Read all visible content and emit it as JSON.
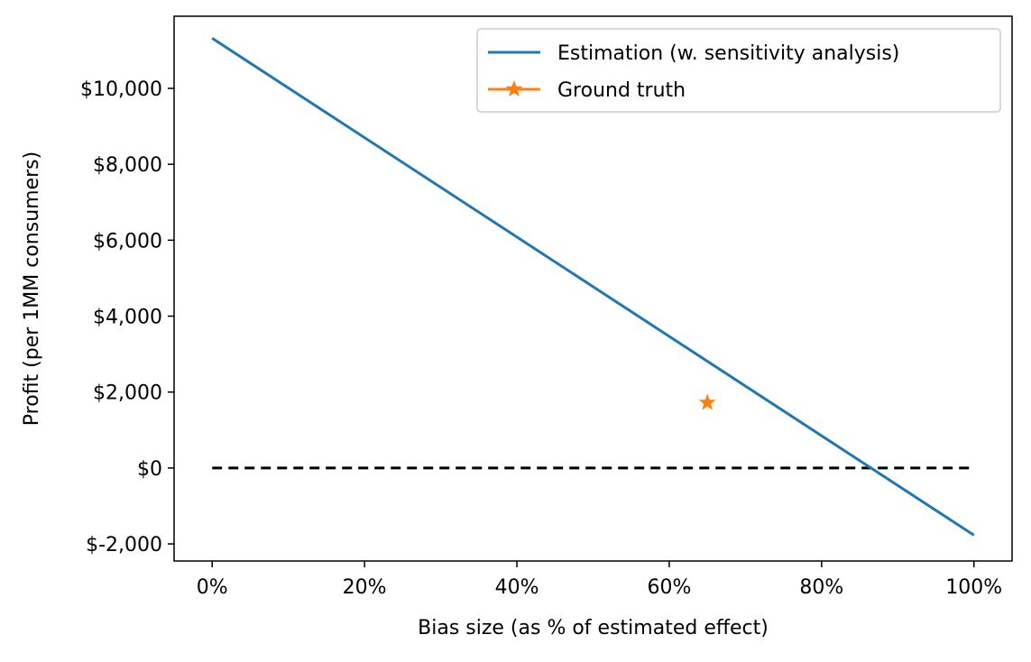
{
  "chart_data": {
    "type": "line",
    "title": "",
    "xlabel": "Bias size (as % of estimated effect)",
    "ylabel": "Profit (per 1MM consumers)",
    "xlim": [
      -0.05,
      1.05
    ],
    "ylim": [
      -2450,
      11900
    ],
    "x_ticks": [
      0,
      0.2,
      0.4,
      0.6,
      0.8,
      1.0
    ],
    "x_tick_labels": [
      "0%",
      "20%",
      "40%",
      "60%",
      "80%",
      "100%"
    ],
    "y_ticks": [
      -2000,
      0,
      2000,
      4000,
      6000,
      8000,
      10000
    ],
    "y_tick_labels": [
      "$-2,000",
      "$0",
      "$2,000",
      "$4,000",
      "$6,000",
      "$8,000",
      "$10,000"
    ],
    "grid": false,
    "legend_position": "top-right",
    "series": [
      {
        "name": "Estimation (w. sensitivity analysis)",
        "kind": "line",
        "color": "#1f77b4",
        "x": [
          0,
          1.0
        ],
        "y": [
          11320,
          -1770
        ]
      },
      {
        "name": "Ground truth",
        "kind": "star-marker",
        "color": "#ff7f0e",
        "x": [
          0.65
        ],
        "y": [
          1720
        ]
      }
    ],
    "reference_lines": [
      {
        "kind": "dashed",
        "color": "#000000",
        "x": [
          0,
          1.0
        ],
        "y": [
          0,
          0
        ]
      }
    ]
  }
}
